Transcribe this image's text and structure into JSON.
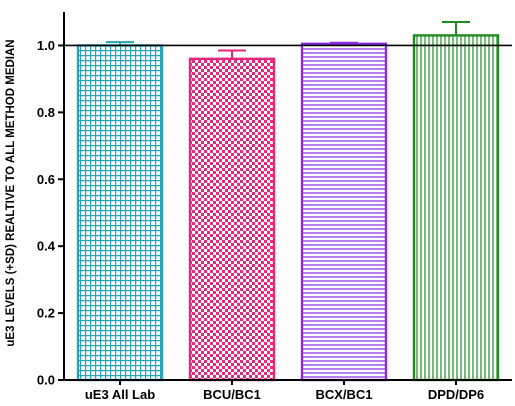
{
  "chart_data": {
    "type": "bar",
    "title": "",
    "xlabel": "",
    "ylabel": "uE3 LEVELS (+SD) REALTIVE TO ALL METHOD MEDIAN",
    "ylim": [
      0,
      1.1
    ],
    "yticks": [
      0.0,
      0.2,
      0.4,
      0.6,
      0.8,
      1.0
    ],
    "ytick_labels": [
      "0.0",
      "0.2",
      "0.4",
      "0.6",
      "0.8",
      "1.0"
    ],
    "reference_line": 1.0,
    "categories": [
      "uE3 All Lab",
      "BCU/BC1",
      "BCX/BC1",
      "DPD/DP6"
    ],
    "values": [
      1.0,
      0.96,
      1.005,
      1.03
    ],
    "sd": [
      0.01,
      0.025,
      0.003,
      0.04
    ],
    "colors": [
      "#2aa3b8",
      "#e8267a",
      "#8a2be2",
      "#1e8c1e"
    ],
    "patterns": [
      "grid",
      "checker",
      "horizontal",
      "vertical"
    ],
    "grid": false,
    "legend": "none"
  }
}
